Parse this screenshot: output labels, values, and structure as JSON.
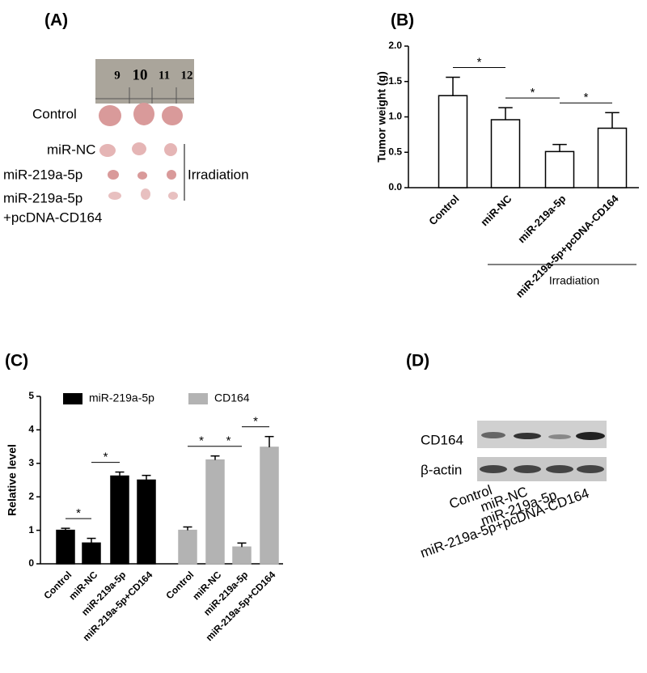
{
  "panel_a": {
    "label": "(A)",
    "ruler": [
      "9",
      "10",
      "11",
      "12"
    ],
    "rows": [
      [
        "Control"
      ],
      [
        "miR-NC"
      ],
      [
        "miR-219a-5p"
      ],
      [
        "miR-219a-5p",
        "+pcDNA-CD164"
      ]
    ],
    "group_label": "Irradiation"
  },
  "chart_data": [
    {
      "type": "bar",
      "panel_label": "(B)",
      "y_label": "Tumor weight (g)",
      "categories": [
        "Control",
        "miR-NC",
        "miR-219a-5p",
        "miR-219a-5p+pcDNA-CD164"
      ],
      "values": [
        1.3,
        0.96,
        0.51,
        0.84
      ],
      "errors": [
        0.26,
        0.17,
        0.1,
        0.22
      ],
      "color": "#ffffff",
      "edge_color": "#000000",
      "ylim": [
        0,
        2
      ],
      "yticks": [
        {
          "value": 0,
          "label": "0.0"
        },
        {
          "value": 0.5,
          "label": "0.5"
        },
        {
          "value": 1,
          "label": "1.0"
        },
        {
          "value": 1.5,
          "label": "1.5"
        },
        {
          "value": 2,
          "label": "2.0"
        }
      ],
      "comparisons": [
        {
          "pair": [
            0,
            1
          ],
          "label": "*"
        },
        {
          "pair": [
            1,
            2
          ],
          "label": "*"
        },
        {
          "pair": [
            2,
            3
          ],
          "label": "*"
        }
      ],
      "group_label": {
        "text": "Irradiation",
        "from": 1,
        "to": 3
      }
    },
    {
      "type": "bar",
      "panel_label": "(C)",
      "y_label": "Relative level",
      "categories": [
        "Control",
        "miR-NC",
        "miR-219a-5p",
        "miR-219a-5p+CD164",
        "Control",
        "miR-NC",
        "miR-219a-5p",
        "miR-219a-5p+CD164"
      ],
      "series": [
        {
          "name": "miR-219a-5p",
          "color": "#000000",
          "values": [
            1.0,
            0.62,
            2.62,
            2.5,
            null,
            null,
            null,
            null
          ],
          "errors": [
            0.06,
            0.14,
            0.12,
            0.14,
            null,
            null,
            null,
            null
          ]
        },
        {
          "name": "CD164",
          "color": "#b3b3b3",
          "values": [
            null,
            null,
            null,
            null,
            1.0,
            3.1,
            0.5,
            3.48
          ],
          "errors": [
            null,
            null,
            null,
            null,
            0.1,
            0.12,
            0.12,
            0.32
          ]
        }
      ],
      "ylim": [
        0,
        5
      ],
      "yticks": [
        0,
        1,
        2,
        3,
        4,
        5
      ],
      "comparisons": [
        {
          "pair": [
            0,
            1
          ],
          "label": "*"
        },
        {
          "pair": [
            1,
            2
          ],
          "label": "*"
        },
        {
          "pair": [
            4,
            5
          ],
          "label": "*"
        },
        {
          "pair": [
            5,
            6
          ],
          "label": "*"
        },
        {
          "pair": [
            6,
            7
          ],
          "label": "*"
        }
      ]
    }
  ],
  "panel_d": {
    "label": "(D)",
    "bands": [
      "CD164",
      "β-actin"
    ],
    "lanes": [
      "Control",
      "miR-NC",
      "miR-219a-5p",
      "miR-219a-5p+pcDNA-CD164"
    ]
  }
}
